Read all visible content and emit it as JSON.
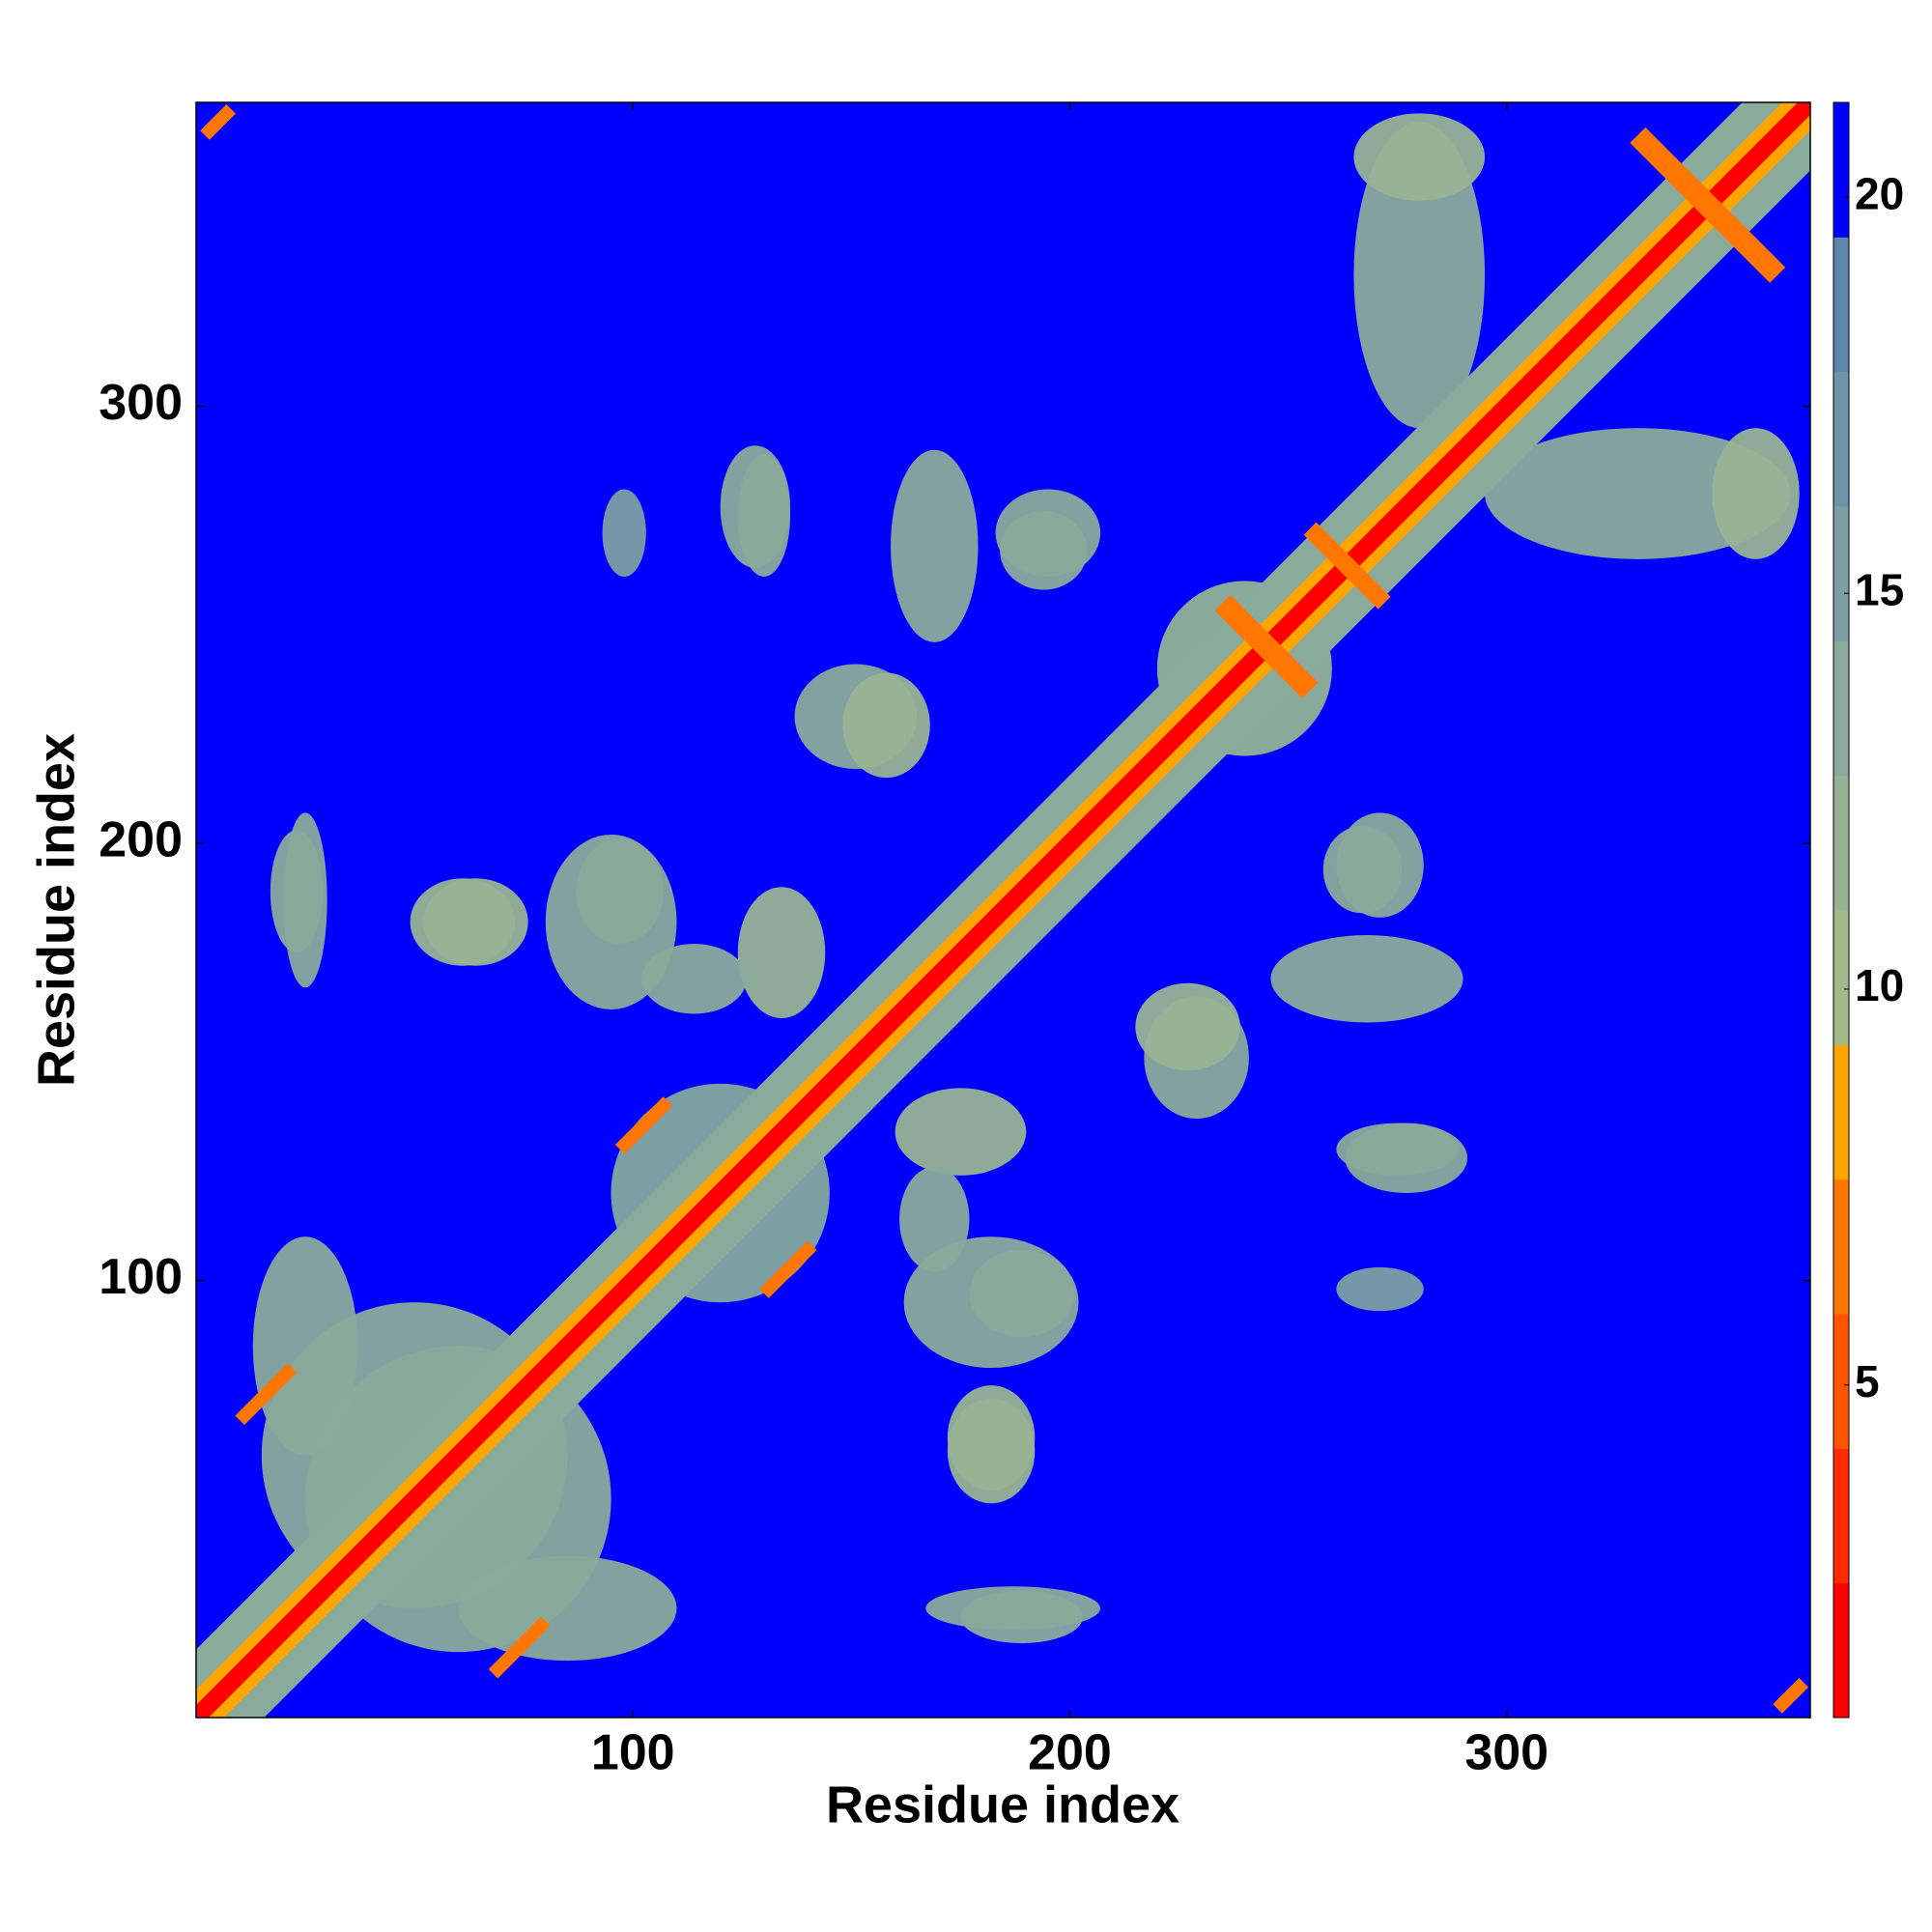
{
  "chart_data": {
    "type": "heatmap",
    "xlabel": "Residue index",
    "ylabel": "Residue index",
    "xlim": [
      0,
      369.5
    ],
    "ylim": [
      0,
      369.5
    ],
    "xticks": [
      100,
      200,
      300
    ],
    "yticks": [
      100,
      200,
      300
    ],
    "symmetric": true,
    "background_value": 21,
    "clim": [
      0.8,
      21.2
    ],
    "cticks": [
      5,
      10,
      15,
      20
    ],
    "colors": [
      "#ff0000",
      "#ff2a00",
      "#ff5500",
      "#ff7700",
      "#ffa500",
      "#a3b98c",
      "#98b394",
      "#8aaa9b",
      "#7c9fa3",
      "#6e93a9",
      "#5d86ad",
      "#0000ff"
    ],
    "patches": [
      {
        "cx": 60,
        "cy": 50,
        "rx": 35,
        "ry": 35,
        "value": 14
      },
      {
        "cx": 120,
        "cy": 120,
        "rx": 25,
        "ry": 25,
        "value": 15
      },
      {
        "cx": 240,
        "cy": 240,
        "rx": 20,
        "ry": 20,
        "value": 14
      },
      {
        "cx": 25,
        "cy": 85,
        "rx": 12,
        "ry": 25,
        "value": 13
      },
      {
        "cx": 61,
        "cy": 182,
        "rx": 12,
        "ry": 10,
        "value": 12
      },
      {
        "cx": 23,
        "cy": 189,
        "rx": 6,
        "ry": 14,
        "value": 13
      },
      {
        "cx": 97,
        "cy": 189,
        "rx": 10,
        "ry": 12,
        "value": 13
      },
      {
        "cx": 134,
        "cy": 175,
        "rx": 10,
        "ry": 15,
        "value": 12
      },
      {
        "cx": 114,
        "cy": 169,
        "rx": 12,
        "ry": 8,
        "value": 13
      },
      {
        "cx": 169,
        "cy": 268,
        "rx": 10,
        "ry": 22,
        "value": 14
      },
      {
        "cx": 195,
        "cy": 271,
        "rx": 12,
        "ry": 10,
        "value": 13
      },
      {
        "cx": 128,
        "cy": 277,
        "rx": 8,
        "ry": 14,
        "value": 14
      },
      {
        "cx": 98,
        "cy": 271,
        "rx": 5,
        "ry": 10,
        "value": 15
      },
      {
        "cx": 151,
        "cy": 229,
        "rx": 14,
        "ry": 12,
        "value": 13
      },
      {
        "cx": 227,
        "cy": 158,
        "rx": 12,
        "ry": 10,
        "value": 12
      },
      {
        "cx": 182,
        "cy": 95,
        "rx": 20,
        "ry": 15,
        "value": 13
      },
      {
        "cx": 182,
        "cy": 64,
        "rx": 10,
        "ry": 12,
        "value": 11
      },
      {
        "cx": 187,
        "cy": 25,
        "rx": 20,
        "ry": 5,
        "value": 14
      },
      {
        "cx": 267,
        "cy": 194,
        "rx": 9,
        "ry": 10,
        "value": 13
      },
      {
        "cx": 275,
        "cy": 130,
        "rx": 14,
        "ry": 6,
        "value": 13
      },
      {
        "cx": 280,
        "cy": 330,
        "rx": 15,
        "ry": 35,
        "value": 13
      },
      {
        "cx": 357,
        "cy": 280,
        "rx": 10,
        "ry": 15,
        "value": 12
      }
    ],
    "bands": [
      {
        "x0": 0,
        "y0": 0,
        "x1": 369.5,
        "y1": 369.5,
        "width": 22,
        "value": 13
      },
      {
        "x0": 0,
        "y0": 0,
        "x1": 369.5,
        "y1": 369.5,
        "width": 9,
        "value": 8
      },
      {
        "x0": 0,
        "y0": 0,
        "x1": 369.5,
        "y1": 369.5,
        "width": 4,
        "value": 2
      },
      {
        "x0": 235,
        "y0": 255,
        "x1": 255,
        "y1": 235,
        "width": 5,
        "value": 6
      },
      {
        "x0": 255,
        "y0": 272,
        "x1": 272,
        "y1": 255,
        "width": 4,
        "value": 6
      },
      {
        "x0": 330,
        "y0": 362,
        "x1": 362,
        "y1": 330,
        "width": 5,
        "value": 6
      },
      {
        "x0": 130,
        "y0": 97,
        "x1": 141,
        "y1": 108,
        "width": 3,
        "value": 6
      },
      {
        "x0": 68,
        "y0": 10,
        "x1": 80,
        "y1": 22,
        "width": 3,
        "value": 6
      },
      {
        "x0": 2,
        "y0": 362,
        "x1": 8,
        "y1": 368,
        "width": 3,
        "value": 7
      }
    ]
  }
}
